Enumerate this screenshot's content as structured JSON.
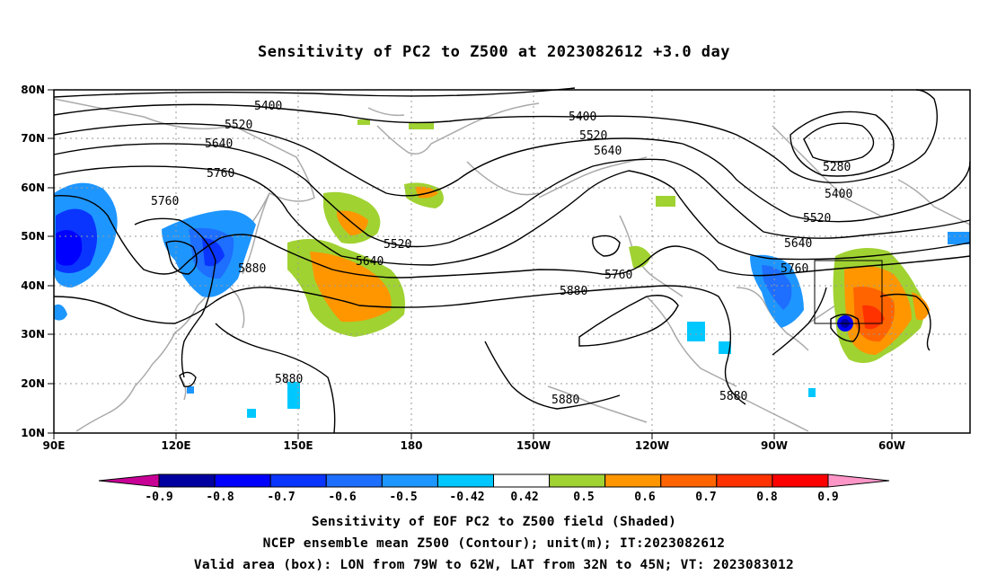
{
  "title": "Sensitivity of PC2 to Z500 at 2023082612 +3.0 day",
  "lat_labels": [
    "80N",
    "70N",
    "60N",
    "50N",
    "40N",
    "30N",
    "20N",
    "10N"
  ],
  "lon_labels": [
    "90E",
    "120E",
    "150E",
    "180",
    "150W",
    "120W",
    "90W",
    "60W"
  ],
  "contour_labels": [
    {
      "text": "5400",
      "id": "c5400a"
    },
    {
      "text": "5520",
      "id": "c5520a"
    },
    {
      "text": "5640",
      "id": "c5640a"
    },
    {
      "text": "5760",
      "id": "c5760a"
    },
    {
      "text": "5760",
      "id": "c5760b"
    },
    {
      "text": "5880",
      "id": "c5880a"
    },
    {
      "text": "5520",
      "id": "c5520b"
    },
    {
      "text": "5640",
      "id": "c5640b"
    },
    {
      "text": "5400",
      "id": "c5400b"
    },
    {
      "text": "5520",
      "id": "c5520c"
    },
    {
      "text": "5640",
      "id": "c5640c"
    },
    {
      "text": "5760",
      "id": "c5760c"
    },
    {
      "text": "5880",
      "id": "c5880b"
    },
    {
      "text": "5280",
      "id": "c5280"
    },
    {
      "text": "5400",
      "id": "c5400c"
    },
    {
      "text": "5520",
      "id": "c5520d"
    },
    {
      "text": "5640",
      "id": "c5640d"
    },
    {
      "text": "5760",
      "id": "c5760d"
    },
    {
      "text": "5880",
      "id": "c5880c"
    },
    {
      "text": "5880",
      "id": "c5880d"
    },
    {
      "text": "5880",
      "id": "c5880e"
    }
  ],
  "colorbar": {
    "labels": [
      "-0.9",
      "-0.8",
      "-0.7",
      "-0.6",
      "-0.5",
      "-0.42",
      "0.42",
      "0.5",
      "0.6",
      "0.7",
      "0.8",
      "0.9"
    ],
    "colors": [
      "#0000a0",
      "#0000ff",
      "#0a35ff",
      "#1e6eff",
      "#1e96ff",
      "#00c8ff",
      "#ffffff",
      "#a0d232",
      "#ff9600",
      "#ff6400",
      "#ff3200",
      "#ff0000"
    ],
    "low_extend_color": "#c80096",
    "high_extend_color": "#ff96c8"
  },
  "box": {
    "lon_range": [
      "79W",
      "62W"
    ],
    "lat_range": [
      "32N",
      "45N"
    ]
  },
  "captions": [
    "Sensitivity of EOF PC2 to Z500 field (Shaded)",
    "NCEP ensemble mean Z500 (Contour); unit(m); IT:2023082612",
    "Valid area (box): LON from 79W to 62W, LAT from 32N to 45N; VT: 2023083012"
  ]
}
